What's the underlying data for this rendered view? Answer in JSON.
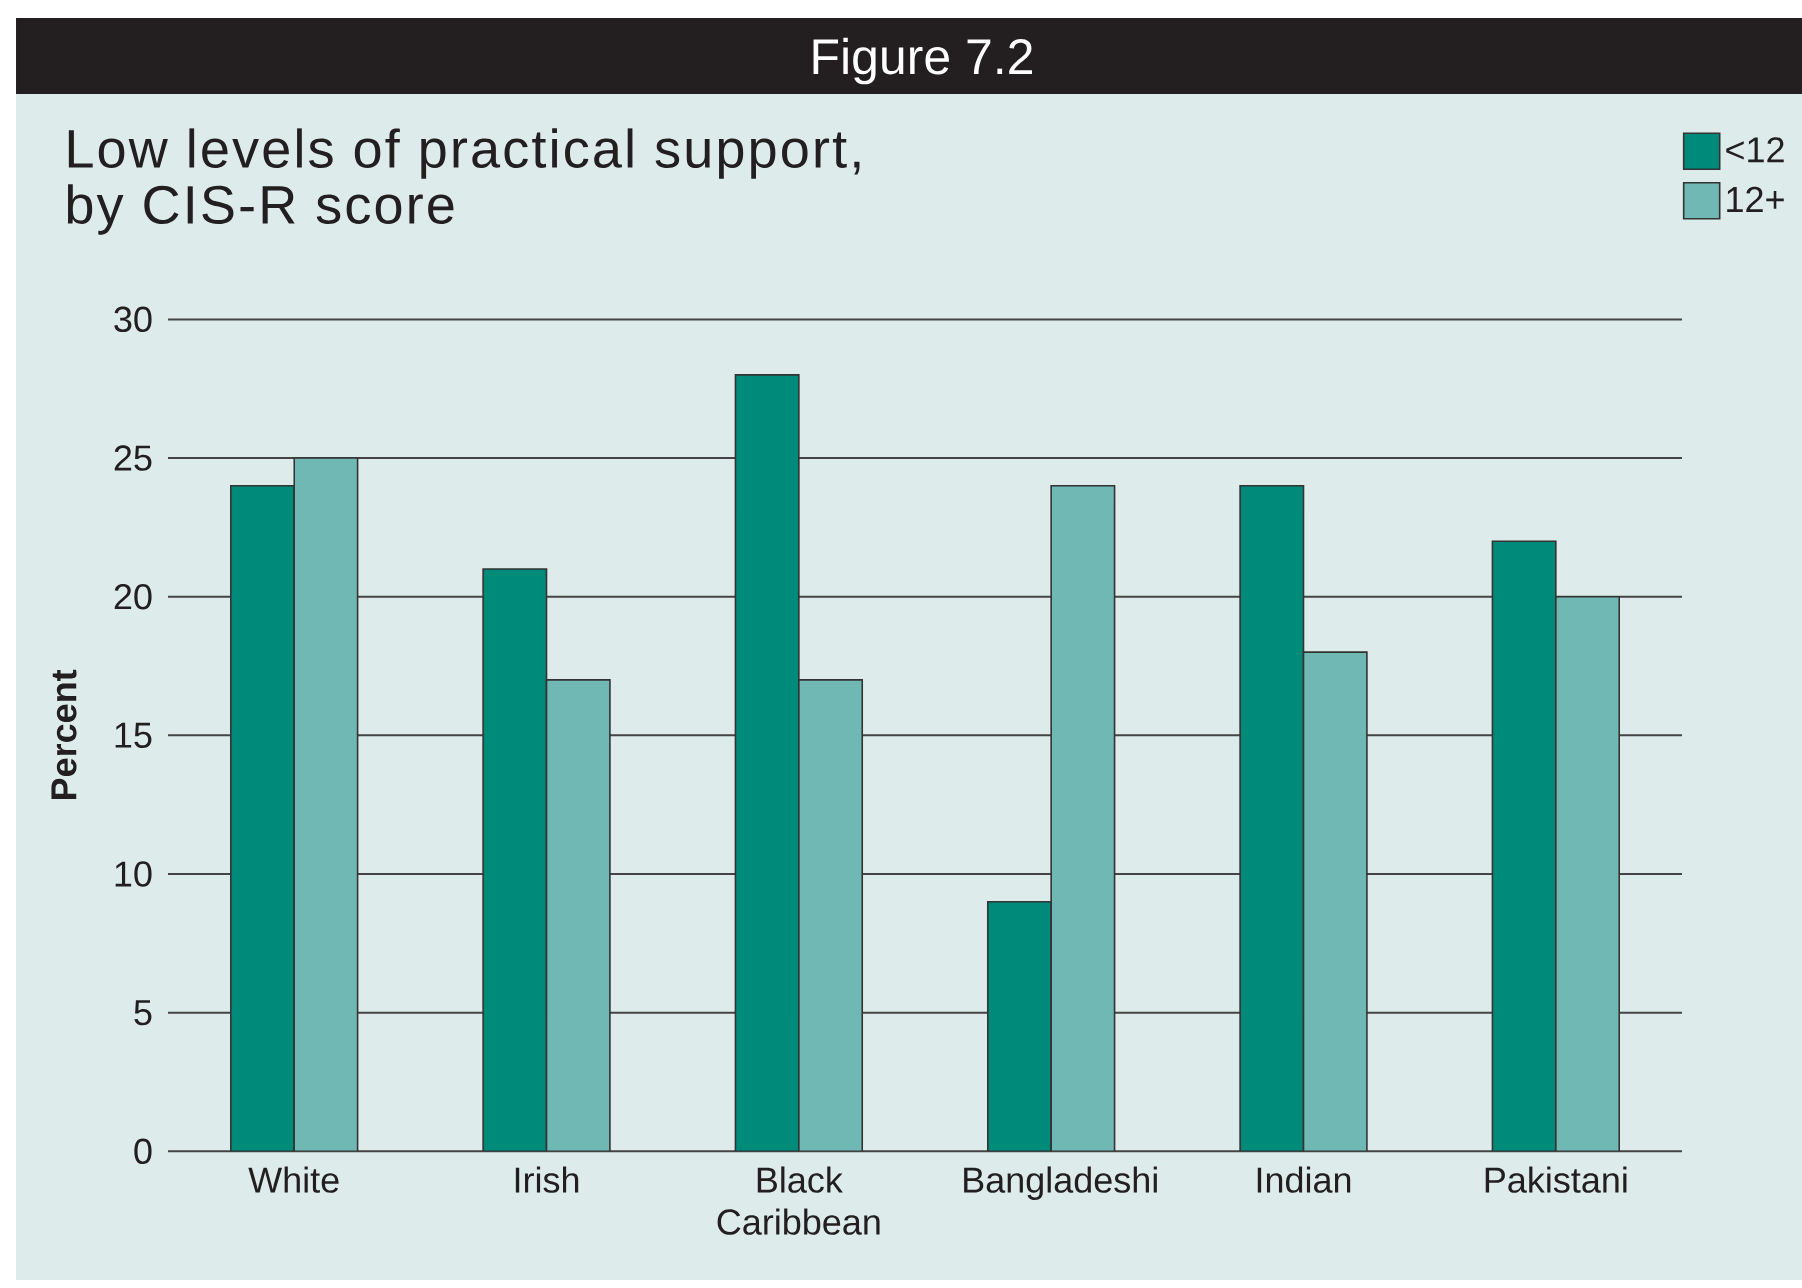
{
  "chart_data": {
    "type": "bar",
    "title": "Figure 7.2",
    "subtitle": "Low levels of practical support, by CIS-R score",
    "ylabel": "Percent",
    "categories": [
      "White",
      "Irish",
      "Black Caribbean",
      "Bangladeshi",
      "Indian",
      "Pakistani"
    ],
    "series": [
      {
        "name": "<12",
        "color": "#008a7a",
        "values": [
          24,
          21,
          28,
          9,
          24,
          22
        ]
      },
      {
        "name": "12+",
        "color": "#70b8b3",
        "values": [
          25,
          17,
          17,
          24,
          18,
          20
        ]
      }
    ],
    "ylim": [
      0,
      30
    ],
    "yticks": [
      0,
      5,
      10,
      15,
      20,
      25,
      30
    ],
    "grid": "y",
    "legend": "top right"
  }
}
